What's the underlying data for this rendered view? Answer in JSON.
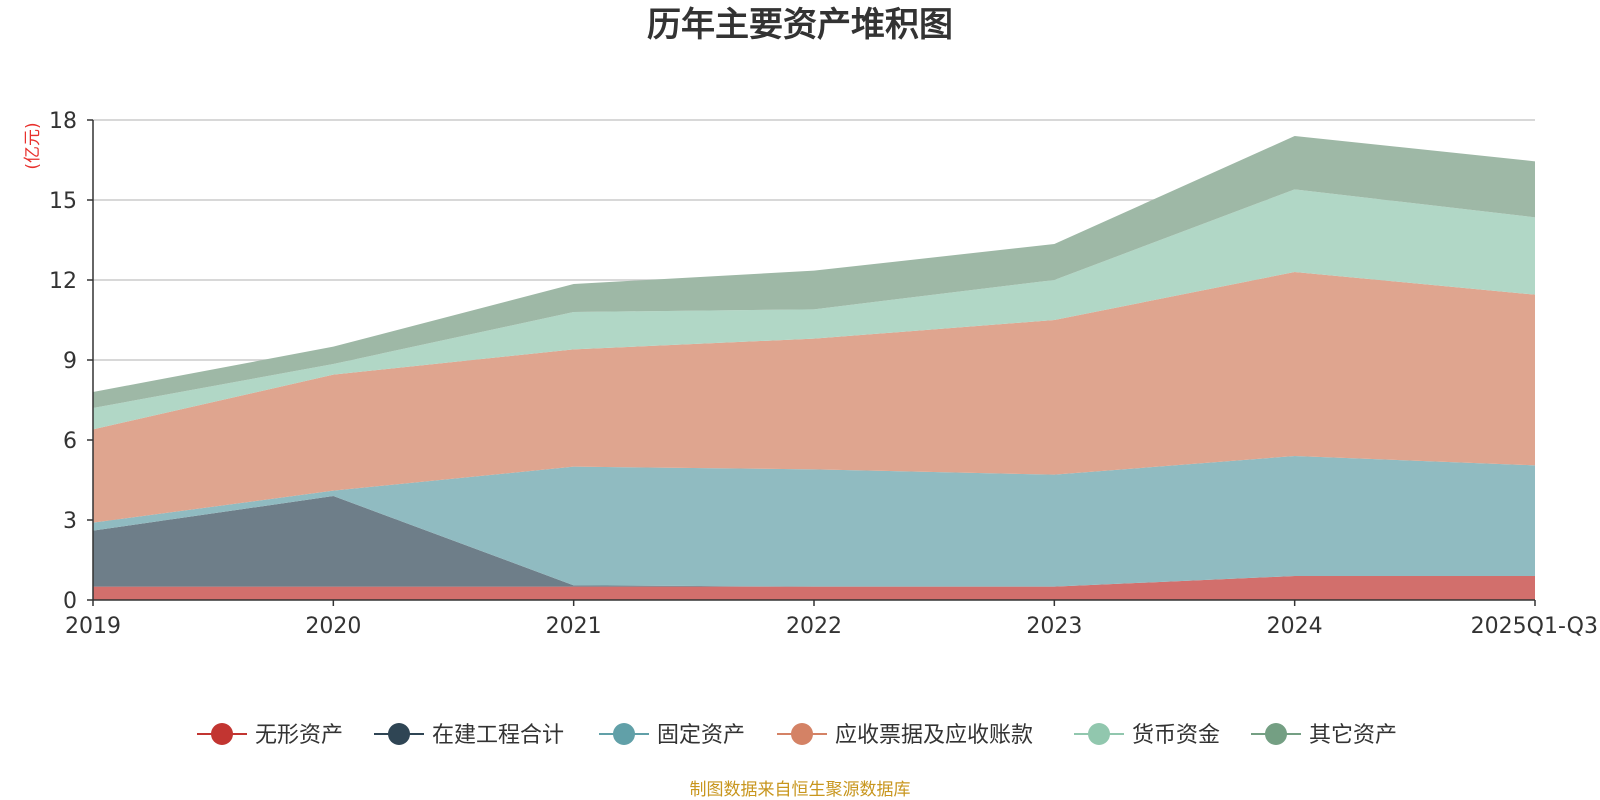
{
  "chart_data": {
    "type": "area",
    "stacked": true,
    "title": "历年主要资产堆积图",
    "ylabel": "(亿元)",
    "xlabel": "",
    "categories": [
      "2019",
      "2020",
      "2021",
      "2022",
      "2023",
      "2024",
      "2025Q1-Q3"
    ],
    "ylim": [
      0,
      18
    ],
    "yticks": [
      0,
      3,
      6,
      9,
      12,
      15,
      18
    ],
    "grid": true,
    "legend_position": "bottom",
    "series": [
      {
        "name": "无形资产",
        "color": "#c23531",
        "fill": "#d26f6c",
        "values": [
          0.5,
          0.5,
          0.5,
          0.5,
          0.5,
          0.9,
          0.9
        ]
      },
      {
        "name": "在建工程合计",
        "color": "#2f4554",
        "fill": "#6e7e89",
        "values": [
          2.1,
          3.4,
          0.05,
          0.0,
          0.0,
          0.0,
          0.0
        ]
      },
      {
        "name": "固定资产",
        "color": "#61a0a8",
        "fill": "#90bbc1",
        "values": [
          0.3,
          0.2,
          4.45,
          4.4,
          4.2,
          4.5,
          4.15
        ]
      },
      {
        "name": "应收票据及应收账款",
        "color": "#d48265",
        "fill": "#dfa58f",
        "values": [
          3.5,
          4.35,
          4.4,
          4.9,
          5.8,
          6.9,
          6.4
        ]
      },
      {
        "name": "货币资金",
        "color": "#91c7ae",
        "fill": "#b1d7c6",
        "values": [
          0.8,
          0.4,
          1.4,
          1.1,
          1.5,
          3.1,
          2.9
        ]
      },
      {
        "name": "其它资产",
        "color": "#749f83",
        "fill": "#9eb8a6",
        "values": [
          0.6,
          0.65,
          1.05,
          1.45,
          1.35,
          2.0,
          2.1
        ]
      }
    ],
    "source": "制图数据来自恒生聚源数据库"
  }
}
